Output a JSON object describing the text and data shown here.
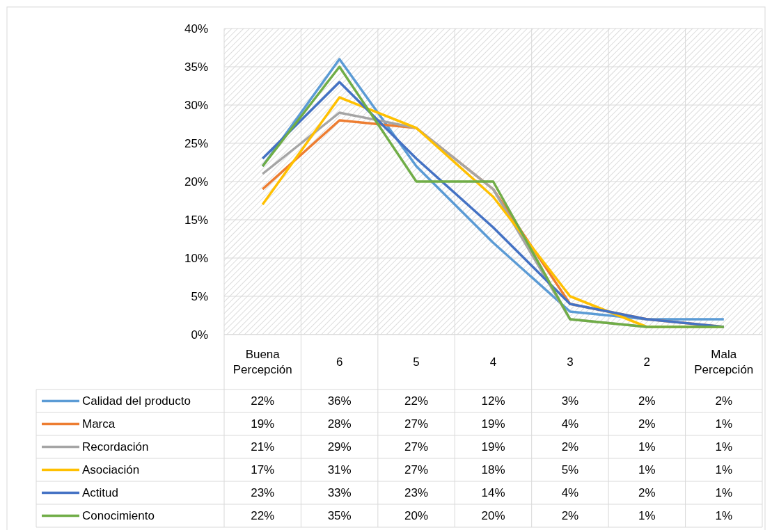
{
  "chart_data": {
    "type": "line",
    "categories": [
      "Buena Percepción",
      "6",
      "5",
      "4",
      "3",
      "2",
      "Mala Percepción"
    ],
    "ylim": [
      0,
      40
    ],
    "yticks": [
      {
        "value": 0,
        "label": "0%"
      },
      {
        "value": 5,
        "label": "5%"
      },
      {
        "value": 10,
        "label": "10%"
      },
      {
        "value": 15,
        "label": "15%"
      },
      {
        "value": 20,
        "label": "20%"
      },
      {
        "value": 25,
        "label": "25%"
      },
      {
        "value": 30,
        "label": "30%"
      },
      {
        "value": 35,
        "label": "35%"
      },
      {
        "value": 40,
        "label": "40%"
      }
    ],
    "grid": true,
    "legend": "bottom",
    "marker": "none",
    "line_style": "solid",
    "series": [
      {
        "name": "Calidad del producto",
        "color": "#5b9bd5",
        "values": [
          22,
          36,
          22,
          12,
          3,
          2,
          2
        ],
        "value_labels": [
          "22%",
          "36%",
          "22%",
          "12%",
          "3%",
          "2%",
          "2%"
        ]
      },
      {
        "name": "Marca",
        "color": "#ed7d31",
        "values": [
          19,
          28,
          27,
          19,
          4,
          2,
          1
        ],
        "value_labels": [
          "19%",
          "28%",
          "27%",
          "19%",
          "4%",
          "2%",
          "1%"
        ]
      },
      {
        "name": "Recordación",
        "color": "#a5a5a5",
        "values": [
          21,
          29,
          27,
          19,
          2,
          1,
          1
        ],
        "value_labels": [
          "21%",
          "29%",
          "27%",
          "19%",
          "2%",
          "1%",
          "1%"
        ]
      },
      {
        "name": "Asociación",
        "color": "#ffc000",
        "values": [
          17,
          31,
          27,
          18,
          5,
          1,
          1
        ],
        "value_labels": [
          "17%",
          "31%",
          "27%",
          "18%",
          "5%",
          "1%",
          "1%"
        ]
      },
      {
        "name": "Actitud",
        "color": "#4472c4",
        "values": [
          23,
          33,
          23,
          14,
          4,
          2,
          1
        ],
        "value_labels": [
          "23%",
          "33%",
          "23%",
          "14%",
          "4%",
          "2%",
          "1%"
        ]
      },
      {
        "name": "Conocimiento",
        "color": "#70ad47",
        "values": [
          22,
          35,
          20,
          20,
          2,
          1,
          1
        ],
        "value_labels": [
          "22%",
          "35%",
          "20%",
          "20%",
          "2%",
          "1%",
          "1%"
        ]
      }
    ]
  }
}
